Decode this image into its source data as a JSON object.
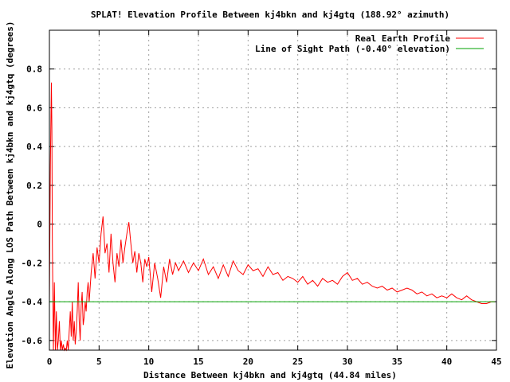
{
  "chart_data": {
    "type": "line",
    "title": "SPLAT! Elevation Profile Between kj4bkn and kj4gtq (188.92° azimuth)",
    "xlabel": "Distance Between kj4bkn and kj4gtq (44.84 miles)",
    "ylabel": "Elevation Angle Along LOS Path Between kj4bkn and kj4gtq (degrees)",
    "xlim": [
      0,
      45
    ],
    "ylim": [
      -0.65,
      1.0
    ],
    "x_ticks": [
      0,
      5,
      10,
      15,
      20,
      25,
      30,
      35,
      40,
      45
    ],
    "y_ticks": [
      -0.6,
      -0.4,
      -0.2,
      0,
      0.2,
      0.4,
      0.6,
      0.8
    ],
    "y_tick_labels": [
      "-0.6",
      "-0.4",
      "-0.2",
      "0",
      "0.2",
      "0.4",
      "0.6",
      "0.8"
    ],
    "grid": true,
    "legend_position": "top-right",
    "series": [
      {
        "name": "Real Earth Profile",
        "color": "#ff0000",
        "x": [
          0.0,
          0.1,
          0.2,
          0.25,
          0.3,
          0.4,
          0.5,
          0.6,
          0.7,
          0.8,
          0.9,
          1.0,
          1.1,
          1.2,
          1.3,
          1.4,
          1.5,
          1.6,
          1.7,
          1.8,
          1.9,
          2.0,
          2.1,
          2.2,
          2.3,
          2.4,
          2.5,
          2.6,
          2.7,
          2.8,
          2.9,
          3.0,
          3.1,
          3.2,
          3.3,
          3.4,
          3.5,
          3.6,
          3.7,
          3.8,
          3.9,
          4.0,
          4.2,
          4.4,
          4.6,
          4.8,
          5.0,
          5.2,
          5.4,
          5.6,
          5.8,
          6.0,
          6.2,
          6.4,
          6.6,
          6.8,
          7.0,
          7.2,
          7.4,
          7.6,
          7.8,
          8.0,
          8.2,
          8.4,
          8.6,
          8.8,
          9.0,
          9.2,
          9.4,
          9.6,
          9.8,
          10.0,
          10.3,
          10.6,
          10.9,
          11.2,
          11.5,
          11.8,
          12.1,
          12.4,
          12.7,
          13.0,
          13.5,
          14.0,
          14.5,
          15.0,
          15.5,
          16.0,
          16.5,
          17.0,
          17.5,
          18.0,
          18.5,
          19.0,
          19.5,
          20.0,
          20.5,
          21.0,
          21.5,
          22.0,
          22.5,
          23.0,
          23.5,
          24.0,
          24.5,
          25.0,
          25.5,
          26.0,
          26.5,
          27.0,
          27.5,
          28.0,
          28.5,
          29.0,
          29.5,
          30.0,
          30.5,
          31.0,
          31.5,
          32.0,
          32.5,
          33.0,
          33.5,
          34.0,
          34.5,
          35.0,
          35.5,
          36.0,
          36.5,
          37.0,
          37.5,
          38.0,
          38.5,
          39.0,
          39.5,
          40.0,
          40.5,
          41.0,
          41.5,
          42.0,
          42.5,
          43.0,
          43.5,
          44.0,
          44.5,
          44.84
        ],
        "y": [
          -0.4,
          0.3,
          0.73,
          0.5,
          -0.1,
          -0.65,
          -0.3,
          -0.65,
          -0.45,
          -0.65,
          -0.6,
          -0.5,
          -0.65,
          -0.6,
          -0.65,
          -0.62,
          -0.65,
          -0.64,
          -0.65,
          -0.6,
          -0.65,
          -0.55,
          -0.45,
          -0.58,
          -0.4,
          -0.6,
          -0.5,
          -0.62,
          -0.55,
          -0.45,
          -0.3,
          -0.5,
          -0.6,
          -0.42,
          -0.35,
          -0.52,
          -0.48,
          -0.4,
          -0.45,
          -0.35,
          -0.3,
          -0.4,
          -0.25,
          -0.15,
          -0.28,
          -0.12,
          -0.2,
          -0.05,
          0.04,
          -0.15,
          -0.1,
          -0.25,
          -0.05,
          -0.2,
          -0.3,
          -0.15,
          -0.22,
          -0.08,
          -0.2,
          -0.12,
          -0.05,
          0.01,
          -0.1,
          -0.2,
          -0.14,
          -0.25,
          -0.15,
          -0.2,
          -0.3,
          -0.18,
          -0.22,
          -0.17,
          -0.35,
          -0.2,
          -0.28,
          -0.38,
          -0.22,
          -0.3,
          -0.18,
          -0.26,
          -0.2,
          -0.24,
          -0.19,
          -0.25,
          -0.2,
          -0.24,
          -0.18,
          -0.26,
          -0.22,
          -0.28,
          -0.21,
          -0.27,
          -0.19,
          -0.24,
          -0.26,
          -0.21,
          -0.24,
          -0.23,
          -0.27,
          -0.22,
          -0.26,
          -0.25,
          -0.29,
          -0.27,
          -0.28,
          -0.3,
          -0.27,
          -0.31,
          -0.29,
          -0.32,
          -0.28,
          -0.3,
          -0.29,
          -0.31,
          -0.27,
          -0.25,
          -0.29,
          -0.28,
          -0.31,
          -0.3,
          -0.32,
          -0.33,
          -0.32,
          -0.34,
          -0.33,
          -0.35,
          -0.34,
          -0.33,
          -0.34,
          -0.36,
          -0.35,
          -0.37,
          -0.36,
          -0.38,
          -0.37,
          -0.38,
          -0.36,
          -0.38,
          -0.39,
          -0.37,
          -0.39,
          -0.4,
          -0.41,
          -0.41,
          -0.4,
          -0.4
        ]
      },
      {
        "name": "Line of Sight Path (-0.40° elevation)",
        "color": "#00a000",
        "x": [
          0,
          44.84
        ],
        "y": [
          -0.4,
          -0.4
        ]
      }
    ]
  }
}
